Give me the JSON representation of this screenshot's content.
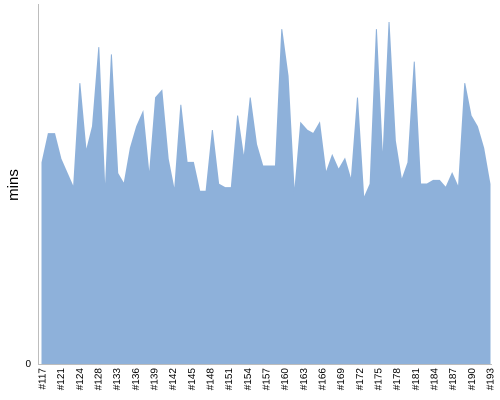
{
  "chart_data": {
    "type": "area",
    "ylabel": "mins",
    "ylim": [
      0,
      100
    ],
    "y_ticks": [
      {
        "value": 0,
        "label": "0"
      }
    ],
    "color": "#8eb1da",
    "axis_color": "#bdbdbd",
    "x_labels": [
      "#117",
      "#121",
      "#124",
      "#128",
      "#133",
      "#136",
      "#139",
      "#142",
      "#145",
      "#148",
      "#151",
      "#154",
      "#157",
      "#160",
      "#163",
      "#166",
      "#169",
      "#172",
      "#175",
      "#178",
      "#181",
      "#184",
      "#187",
      "#190",
      "#193"
    ],
    "values": [
      56,
      64,
      64,
      57,
      53,
      49,
      78,
      59,
      66,
      88,
      47,
      86,
      53,
      50,
      60,
      66,
      70,
      52,
      74,
      76,
      57,
      48,
      72,
      56,
      56,
      48,
      48,
      65,
      50,
      49,
      49,
      69,
      57,
      74,
      61,
      55,
      55,
      55,
      93,
      80,
      47,
      67,
      65,
      64,
      67,
      53,
      58,
      54,
      57,
      51,
      74,
      46,
      50,
      93,
      56,
      95,
      62,
      51,
      56,
      84,
      50,
      50,
      51,
      51,
      49,
      53,
      49,
      78,
      69,
      66,
      60,
      50
    ]
  }
}
